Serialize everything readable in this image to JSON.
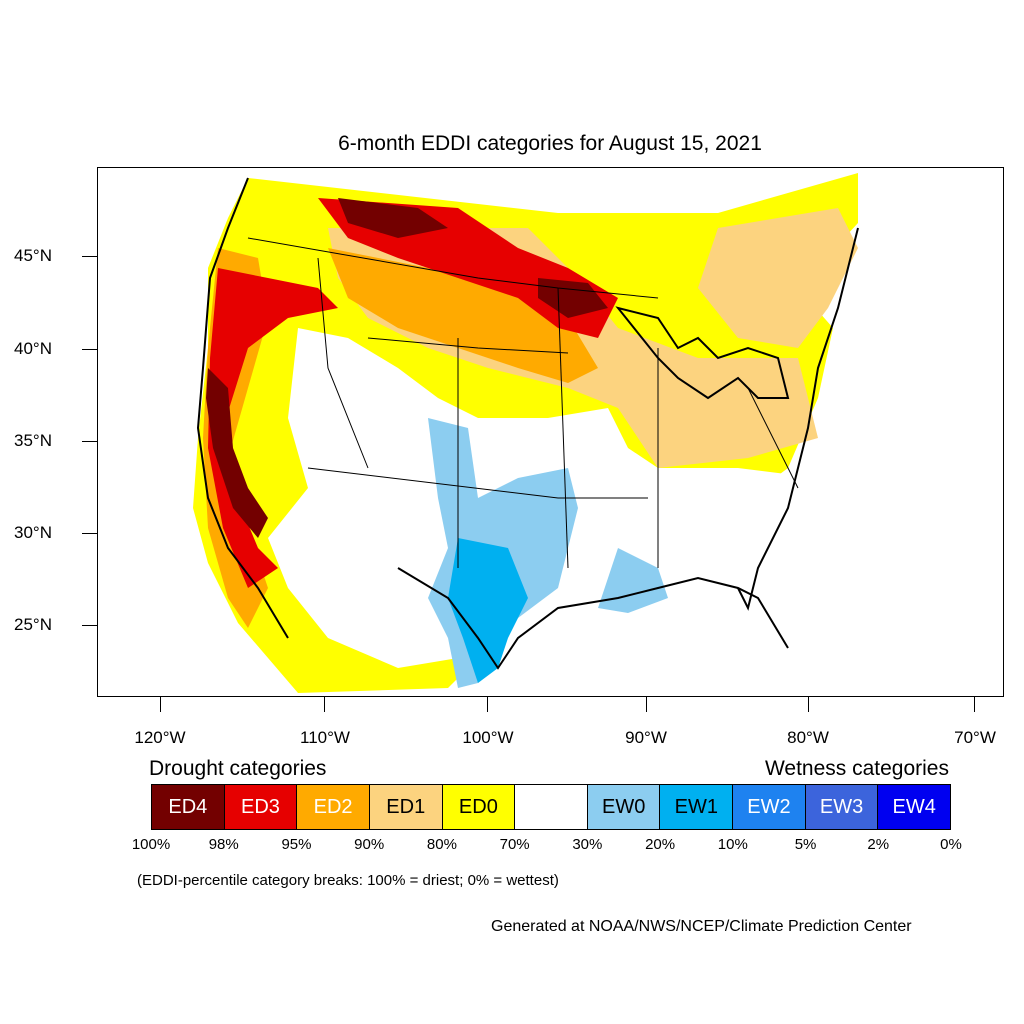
{
  "title": "6-month EDDI categories for August 15, 2021",
  "lat_labels": [
    "45°N",
    "40°N",
    "35°N",
    "30°N",
    "25°N"
  ],
  "lon_labels": [
    "120°W",
    "110°W",
    "100°W",
    "90°W",
    "80°W",
    "70°W"
  ],
  "legend": {
    "drought_heading": "Drought categories",
    "wetness_heading": "Wetness categories",
    "categories": [
      {
        "label": "ED4",
        "color": "#730000",
        "text_color": "#ffffff"
      },
      {
        "label": "ED3",
        "color": "#e60000",
        "text_color": "#ffffff"
      },
      {
        "label": "ED2",
        "color": "#ffaa00",
        "text_color": "#ffffff"
      },
      {
        "label": "ED1",
        "color": "#fcd37f",
        "text_color": "#000000"
      },
      {
        "label": "ED0",
        "color": "#ffff00",
        "text_color": "#000000"
      },
      {
        "label": "",
        "color": "#ffffff",
        "text_color": "#000000"
      },
      {
        "label": "EW0",
        "color": "#8ccdf0",
        "text_color": "#000000"
      },
      {
        "label": "EW1",
        "color": "#00b0f0",
        "text_color": "#000000"
      },
      {
        "label": "EW2",
        "color": "#1e82f0",
        "text_color": "#ffffff"
      },
      {
        "label": "EW3",
        "color": "#3c64dc",
        "text_color": "#ffffff"
      },
      {
        "label": "EW4",
        "color": "#0000f0",
        "text_color": "#ffffff"
      }
    ],
    "percentiles": [
      "100%",
      "98%",
      "95%",
      "90%",
      "80%",
      "70%",
      "30%",
      "20%",
      "10%",
      "5%",
      "2%",
      "0%"
    ]
  },
  "breaks_note": "(EDDI-percentile category breaks: 100% = driest; 0% = wettest)",
  "credit": "Generated at NOAA/NWS/NCEP/Climate Prediction Center"
}
